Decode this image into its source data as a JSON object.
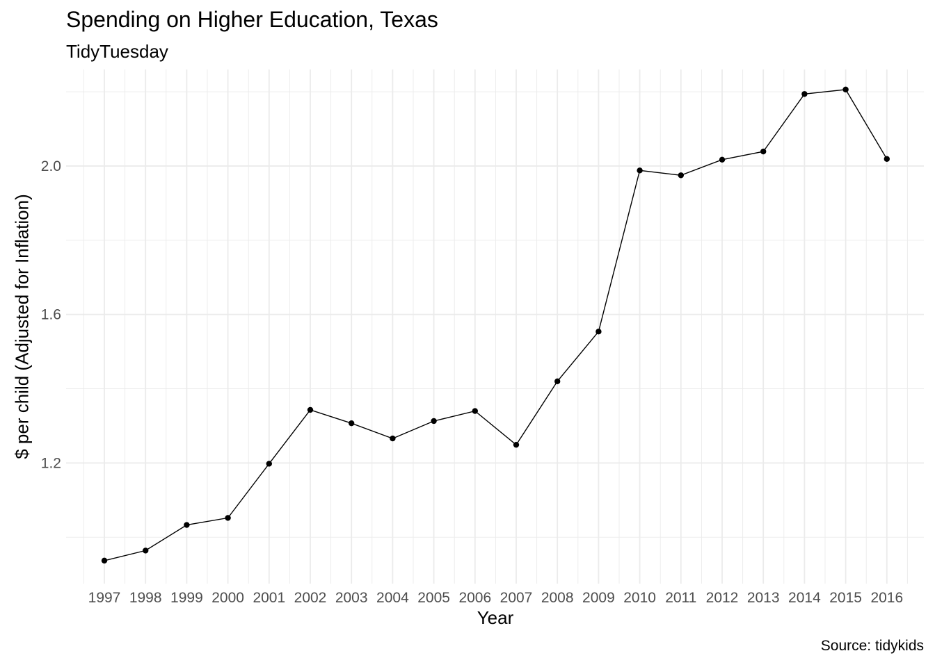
{
  "chart_data": {
    "type": "line",
    "title": "Spending on Higher Education, Texas",
    "subtitle": "TidyTuesday",
    "caption": "Source: tidykids",
    "xlabel": "Year",
    "ylabel": "$ per child (Adjusted for Inflation)",
    "x": [
      "1997",
      "1998",
      "1999",
      "2000",
      "2001",
      "2002",
      "2003",
      "2004",
      "2005",
      "2006",
      "2007",
      "2008",
      "2009",
      "2010",
      "2011",
      "2012",
      "2013",
      "2014",
      "2015",
      "2016"
    ],
    "series": [
      {
        "values": [
          0.937,
          0.964,
          1.033,
          1.052,
          1.198,
          1.343,
          1.307,
          1.266,
          1.313,
          1.34,
          1.249,
          1.42,
          1.554,
          1.988,
          1.975,
          2.017,
          2.039,
          2.194,
          2.206,
          2.019
        ]
      }
    ],
    "yticks": [
      "1.2",
      "1.6",
      "2.0"
    ],
    "ylim": [
      0.875,
      2.26
    ],
    "grid": true,
    "line_color": "#000000",
    "grid_color": "#ebebeb"
  }
}
